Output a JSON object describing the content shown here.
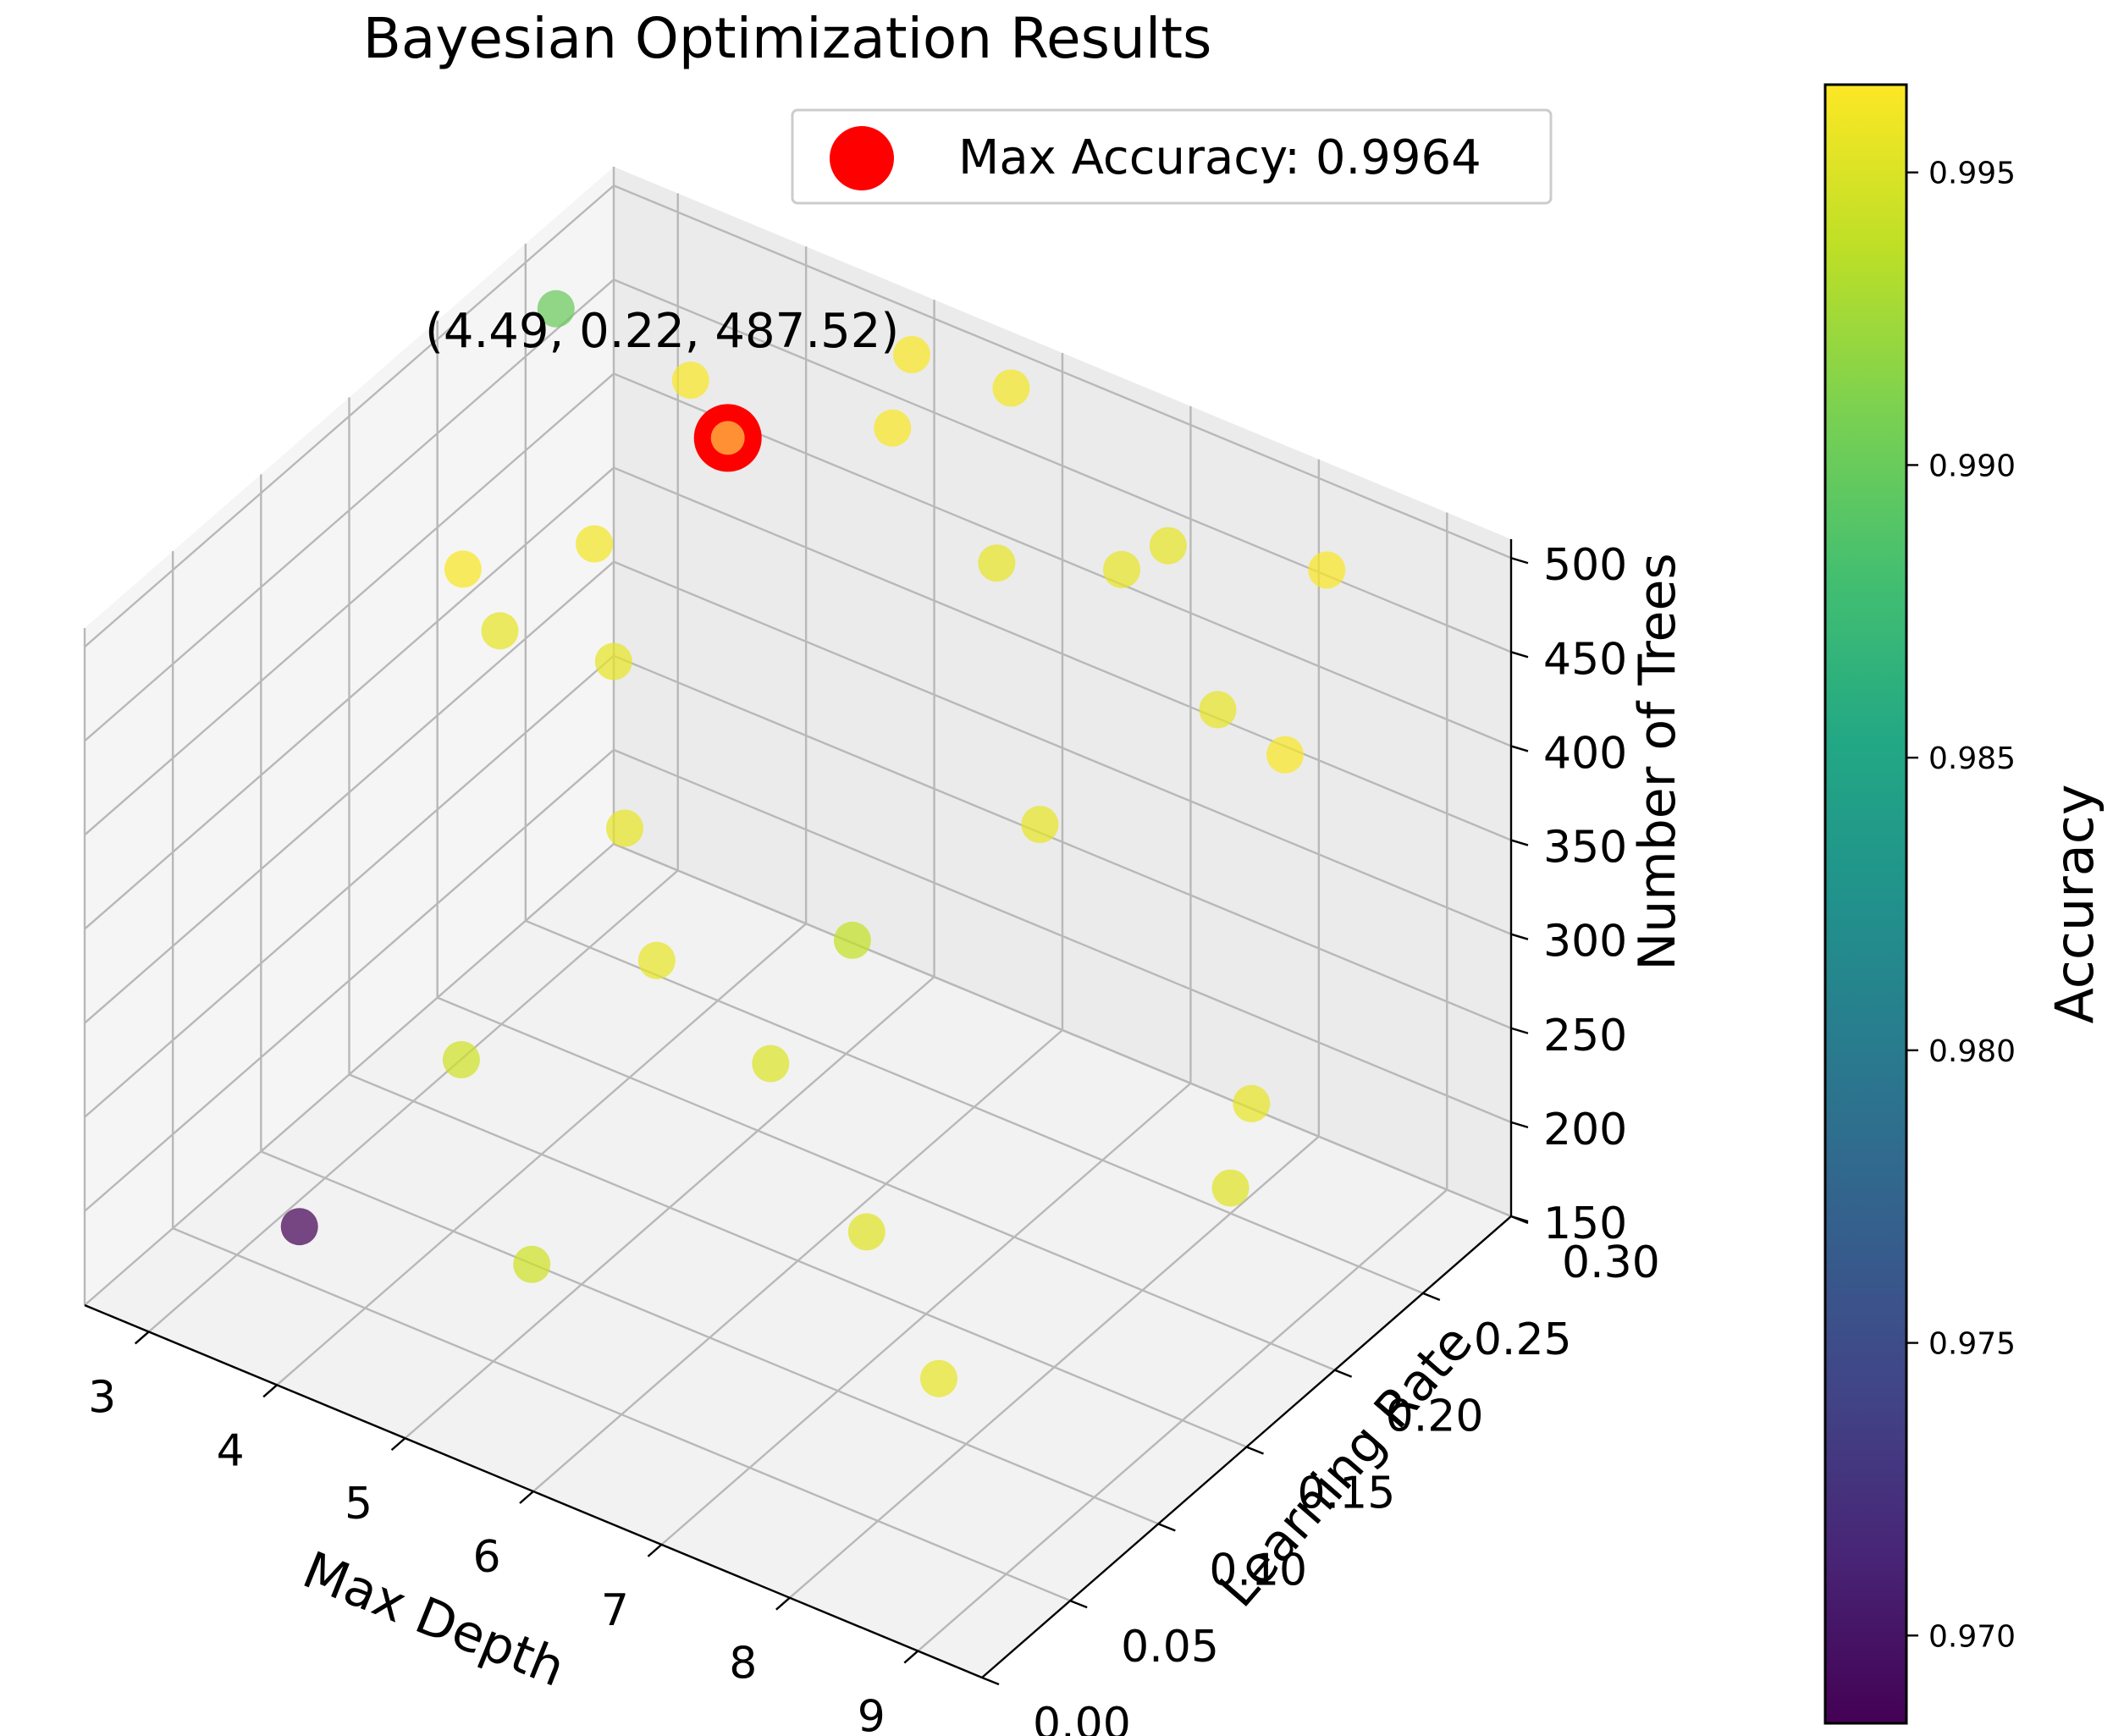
{
  "chart_data": {
    "type": "scatter3d",
    "title": "Bayesian Optimization Results",
    "xlabel": "Max Depth",
    "ylabel": "Learning Rate",
    "zlabel": "Number of Trees",
    "xlim": [
      2.5,
      9.5
    ],
    "ylim": [
      0.0,
      0.3
    ],
    "zlim": [
      150,
      510
    ],
    "x_ticks": [
      3,
      4,
      5,
      6,
      7,
      8,
      9
    ],
    "y_ticks": [
      0.0,
      0.05,
      0.1,
      0.15,
      0.2,
      0.25,
      0.3
    ],
    "y_tick_labels": [
      "0.00",
      "0.05",
      "0.10",
      "0.15",
      "0.20",
      "0.25",
      "0.30"
    ],
    "z_ticks": [
      150,
      200,
      250,
      300,
      350,
      400,
      450,
      500
    ],
    "colorbar": {
      "label": "Accuracy",
      "colormap": "viridis",
      "range": [
        0.9685,
        0.9965
      ],
      "ticks": [
        0.97,
        0.975,
        0.98,
        0.985,
        0.99,
        0.995
      ],
      "tick_labels": [
        "0.970",
        "0.975",
        "0.980",
        "0.985",
        "0.990",
        "0.995"
      ]
    },
    "best_point": {
      "x": 4.49,
      "y": 0.22,
      "z": 487.52,
      "accuracy": 0.9964,
      "marker_color": "#ff0000",
      "annotation": "(4.49, 0.22, 487.52)"
    },
    "legend": {
      "label": "Max Accuracy: 0.9964",
      "position": "upper-center"
    },
    "points": [
      {
        "x": 2.6,
        "y": 0.26,
        "z": 470,
        "accuracy": 0.99
      },
      {
        "x": 3.9,
        "y": 0.02,
        "z": 215,
        "accuracy": 0.9687
      },
      {
        "x": 5.6,
        "y": 0.21,
        "z": 260,
        "accuracy": 0.994
      },
      {
        "x": 5.3,
        "y": 0.05,
        "z": 210,
        "accuracy": 0.9945
      },
      {
        "x": 6.2,
        "y": 0.12,
        "z": 285,
        "accuracy": 0.995
      },
      {
        "x": 7.5,
        "y": 0.08,
        "z": 265,
        "accuracy": 0.9952
      },
      {
        "x": 8.2,
        "y": 0.07,
        "z": 215,
        "accuracy": 0.9955
      },
      {
        "x": 8.3,
        "y": 0.24,
        "z": 225,
        "accuracy": 0.9955
      },
      {
        "x": 4.2,
        "y": 0.09,
        "z": 255,
        "accuracy": 0.9945
      },
      {
        "x": 9.1,
        "y": 0.17,
        "z": 260,
        "accuracy": 0.9952
      },
      {
        "x": 4.0,
        "y": 0.18,
        "z": 450,
        "accuracy": 0.996
      },
      {
        "x": 4.7,
        "y": 0.14,
        "z": 440,
        "accuracy": 0.9955
      },
      {
        "x": 5.2,
        "y": 0.11,
        "z": 390,
        "accuracy": 0.9955
      },
      {
        "x": 5.9,
        "y": 0.27,
        "z": 420,
        "accuracy": 0.9955
      },
      {
        "x": 6.6,
        "y": 0.29,
        "z": 420,
        "accuracy": 0.9955
      },
      {
        "x": 7.9,
        "y": 0.25,
        "z": 415,
        "accuracy": 0.9955
      },
      {
        "x": 7.2,
        "y": 0.2,
        "z": 375,
        "accuracy": 0.9955
      },
      {
        "x": 7.1,
        "y": 0.28,
        "z": 455,
        "accuracy": 0.9955
      },
      {
        "x": 5.6,
        "y": 0.3,
        "z": 480,
        "accuracy": 0.996
      },
      {
        "x": 6.0,
        "y": 0.07,
        "z": 375,
        "accuracy": 0.9955
      },
      {
        "x": 3.8,
        "y": 0.12,
        "z": 480,
        "accuracy": 0.9963
      },
      {
        "x": 4.2,
        "y": 0.22,
        "z": 510,
        "accuracy": 0.9963
      },
      {
        "x": 3.4,
        "y": 0.17,
        "z": 395,
        "accuracy": 0.9955
      },
      {
        "x": 5.5,
        "y": 0.24,
        "z": 505,
        "accuracy": 0.9963
      },
      {
        "x": 5.1,
        "y": 0.28,
        "z": 500,
        "accuracy": 0.9963
      },
      {
        "x": 8.2,
        "y": 0.29,
        "z": 465,
        "accuracy": 0.9963
      },
      {
        "x": 8.7,
        "y": 0.23,
        "z": 430,
        "accuracy": 0.9963
      },
      {
        "x": 4.49,
        "y": 0.22,
        "z": 487.52,
        "accuracy": 0.9964
      }
    ]
  }
}
